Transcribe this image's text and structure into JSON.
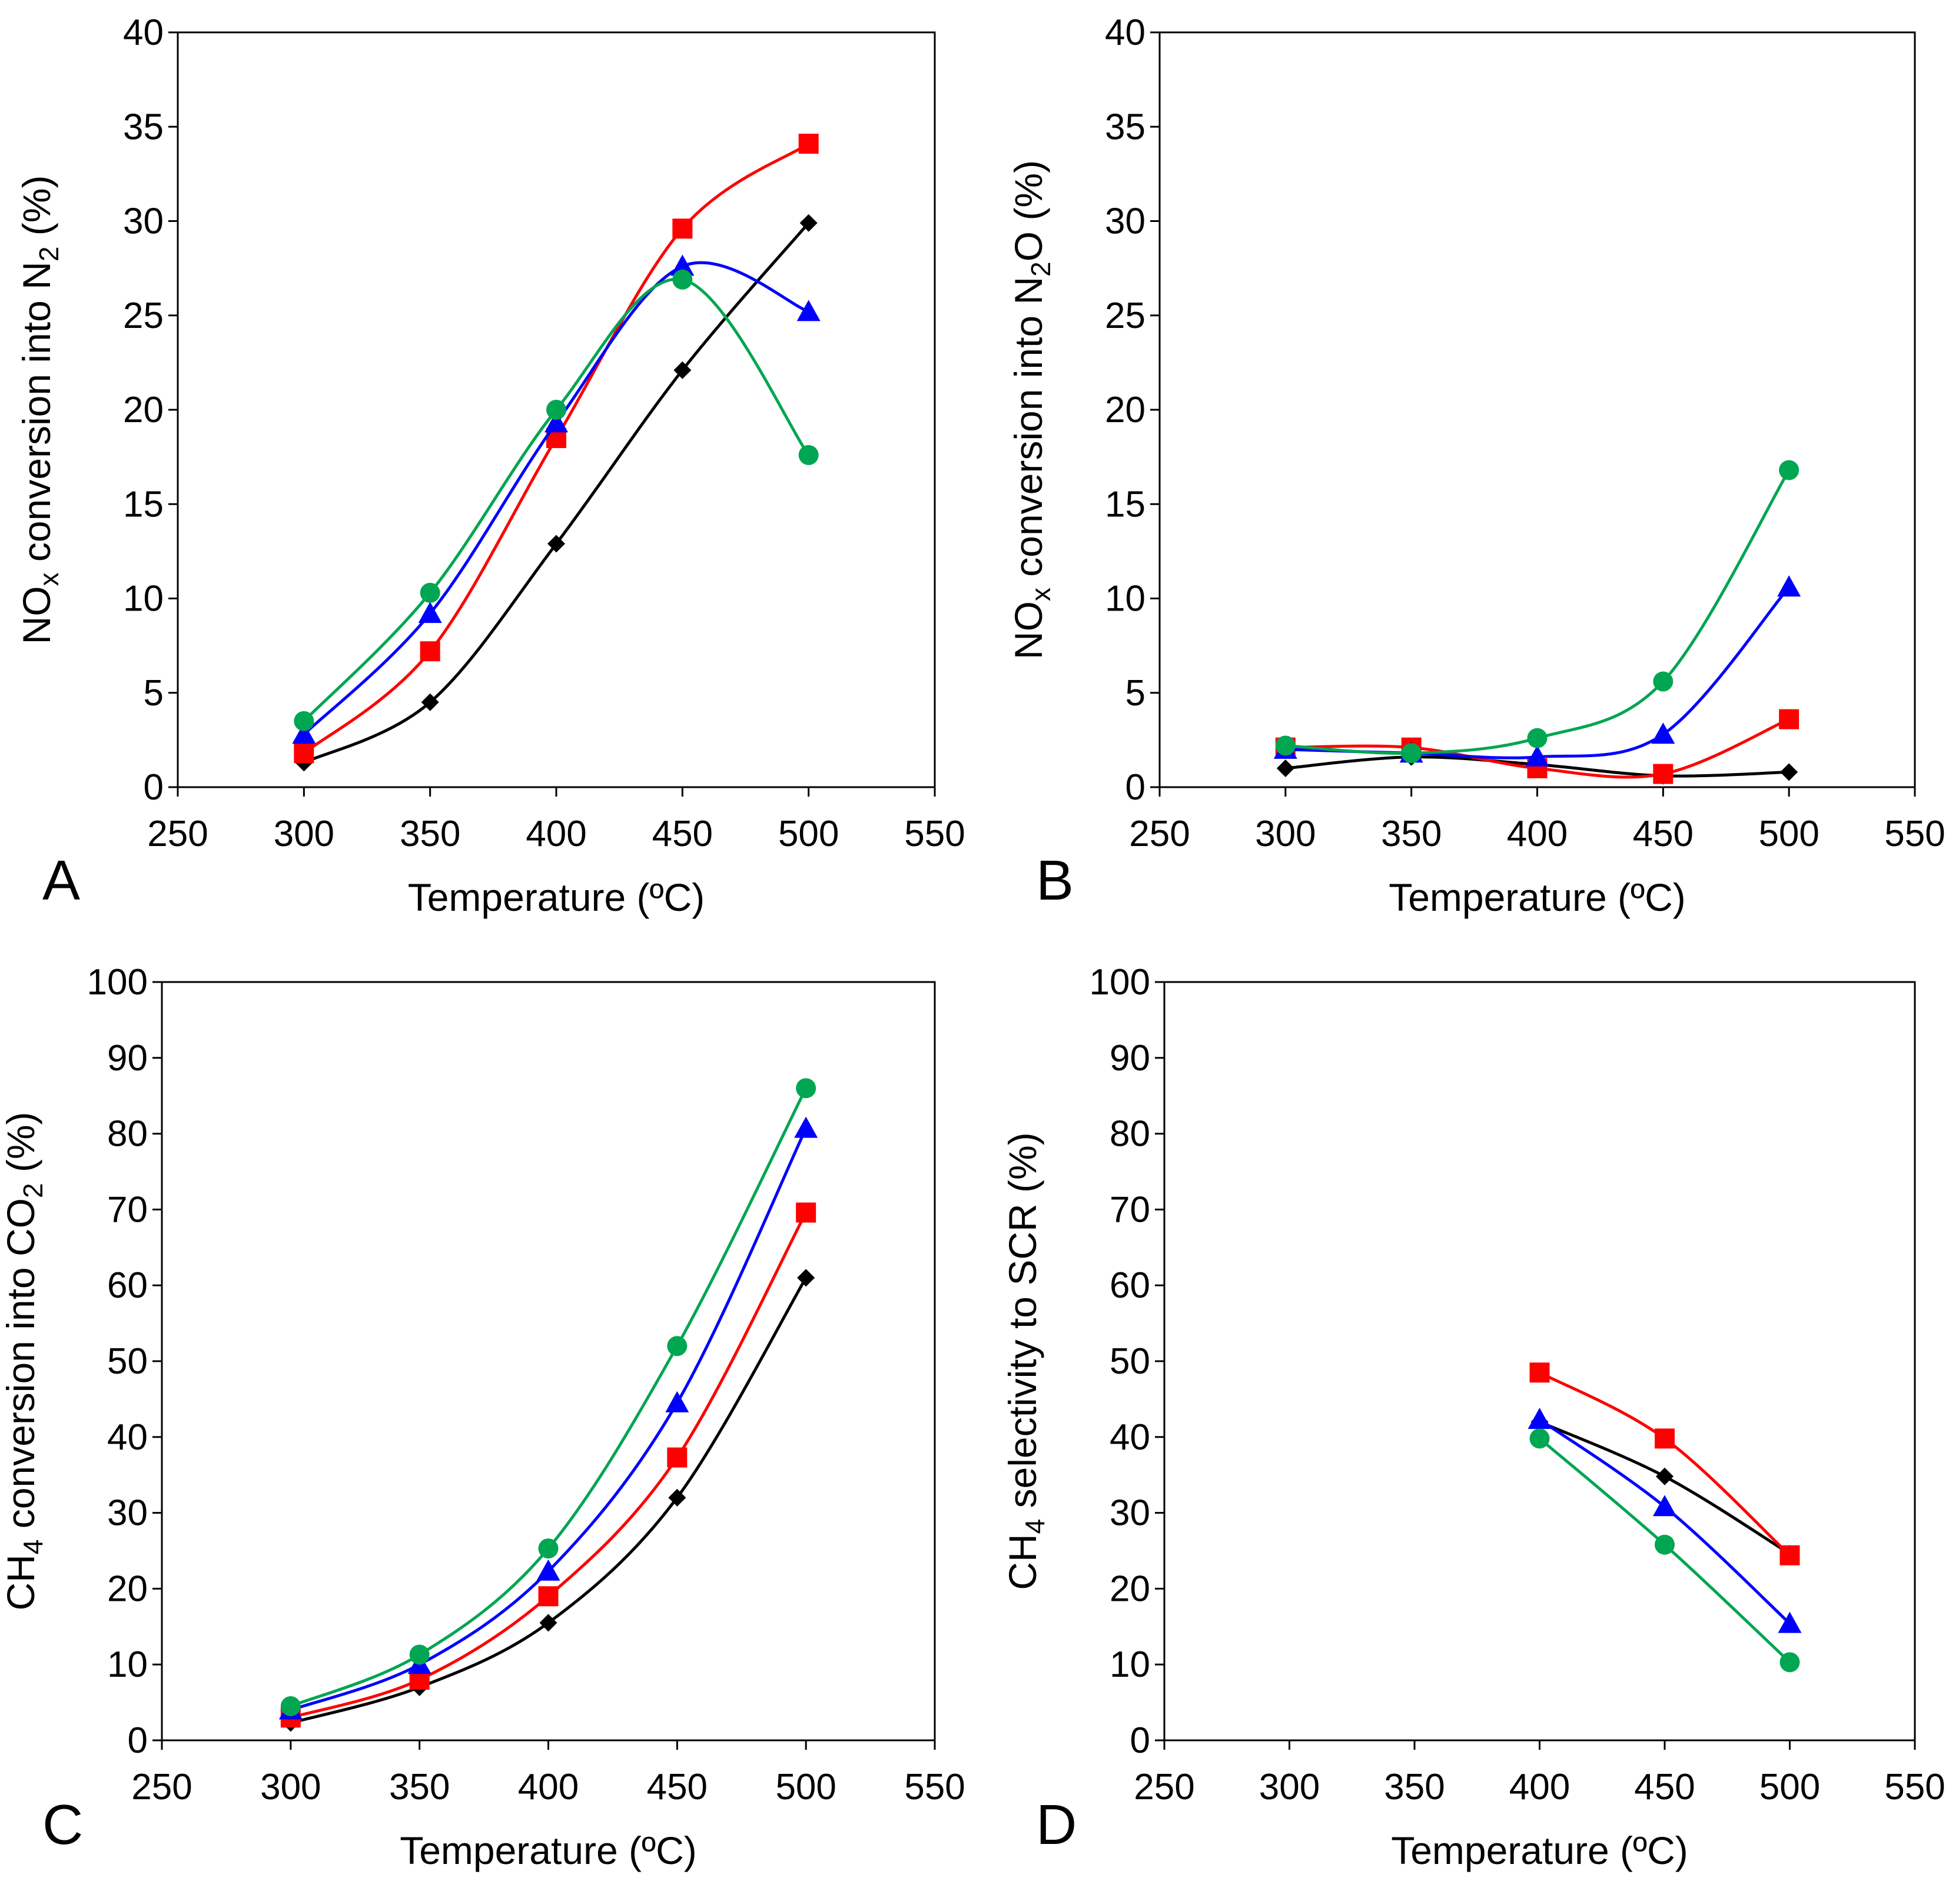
{
  "colors": {
    "series_1": "#000000",
    "series_2": "#ff0000",
    "series_3": "#0000ff",
    "series_4": "#00a651"
  },
  "chart_data": [
    {
      "panel": "A",
      "type": "line",
      "xlabel": "Temperature (ºC)",
      "ylabel": {
        "pre": "NO",
        "sub1": "x",
        "mid": " conversion into N",
        "sub2": "2",
        "post": " (%)"
      },
      "xlim": [
        250,
        550
      ],
      "ylim": [
        0,
        40
      ],
      "xticks": [
        250,
        300,
        350,
        400,
        450,
        500,
        550
      ],
      "yticks": [
        0,
        5,
        10,
        15,
        20,
        25,
        30,
        35,
        40
      ],
      "grid": false,
      "series": [
        {
          "marker": "diamond",
          "color": "#000000",
          "x": [
            300,
            350,
            400,
            450,
            500
          ],
          "y": [
            1.3,
            4.5,
            12.9,
            22.1,
            29.9
          ]
        },
        {
          "marker": "square",
          "color": "#ff0000",
          "x": [
            300,
            350,
            400,
            450,
            500
          ],
          "y": [
            1.8,
            7.2,
            18.5,
            29.6,
            34.1
          ]
        },
        {
          "marker": "triangle",
          "color": "#0000ff",
          "x": [
            300,
            350,
            400,
            450,
            500
          ],
          "y": [
            2.8,
            9.2,
            19.3,
            27.6,
            25.2
          ]
        },
        {
          "marker": "circle",
          "color": "#00a651",
          "x": [
            300,
            350,
            400,
            450,
            500
          ],
          "y": [
            3.5,
            10.3,
            20.0,
            26.9,
            17.6
          ]
        }
      ]
    },
    {
      "panel": "B",
      "type": "line",
      "xlabel": "Temperature (ºC)",
      "ylabel": {
        "pre": "NO",
        "sub1": "x",
        "mid": " conversion into N",
        "sub2": "2",
        "post": "O (%)"
      },
      "xlim": [
        250,
        550
      ],
      "ylim": [
        0,
        40
      ],
      "xticks": [
        250,
        300,
        350,
        400,
        450,
        500,
        550
      ],
      "yticks": [
        0,
        5,
        10,
        15,
        20,
        25,
        30,
        35,
        40
      ],
      "grid": false,
      "series": [
        {
          "marker": "diamond",
          "color": "#000000",
          "x": [
            300,
            350,
            400,
            450,
            500
          ],
          "y": [
            1.0,
            1.6,
            1.2,
            0.6,
            0.8
          ]
        },
        {
          "marker": "square",
          "color": "#ff0000",
          "x": [
            300,
            350,
            400,
            450,
            500
          ],
          "y": [
            2.1,
            2.1,
            1.0,
            0.7,
            3.6
          ]
        },
        {
          "marker": "triangle",
          "color": "#0000ff",
          "x": [
            300,
            350,
            400,
            450,
            500
          ],
          "y": [
            2.0,
            1.8,
            1.6,
            2.8,
            10.6
          ]
        },
        {
          "marker": "circle",
          "color": "#00a651",
          "x": [
            300,
            350,
            400,
            450,
            500
          ],
          "y": [
            2.2,
            1.8,
            2.6,
            5.6,
            16.8
          ]
        }
      ]
    },
    {
      "panel": "C",
      "type": "line",
      "xlabel": "Temperature (ºC)",
      "ylabel": {
        "pre": "CH",
        "sub1": "4",
        "mid": " conversion into CO",
        "sub2": "2",
        "post": " (%)"
      },
      "xlim": [
        250,
        550
      ],
      "ylim": [
        0,
        100
      ],
      "xticks": [
        250,
        300,
        350,
        400,
        450,
        500,
        550
      ],
      "yticks": [
        0,
        10,
        20,
        30,
        40,
        50,
        60,
        70,
        80,
        90,
        100
      ],
      "grid": false,
      "series": [
        {
          "marker": "diamond",
          "color": "#000000",
          "x": [
            300,
            350,
            400,
            450,
            500
          ],
          "y": [
            2.3,
            7.0,
            15.5,
            32.0,
            61.0
          ]
        },
        {
          "marker": "square",
          "color": "#ff0000",
          "x": [
            300,
            350,
            400,
            450,
            500
          ],
          "y": [
            3.0,
            8.0,
            19.0,
            37.3,
            69.6
          ]
        },
        {
          "marker": "triangle",
          "color": "#0000ff",
          "x": [
            300,
            350,
            400,
            450,
            500
          ],
          "y": [
            4.0,
            10.0,
            22.3,
            44.5,
            80.7
          ]
        },
        {
          "marker": "circle",
          "color": "#00a651",
          "x": [
            300,
            350,
            400,
            450,
            500
          ],
          "y": [
            4.5,
            11.3,
            25.3,
            52.0,
            86.0
          ]
        }
      ]
    },
    {
      "panel": "D",
      "type": "line",
      "xlabel": "Temperature (ºC)",
      "ylabel": {
        "pre": "CH",
        "sub1": "4",
        "mid": " selectivity to SCR (%)",
        "sub2": "",
        "post": ""
      },
      "xlim": [
        250,
        550
      ],
      "ylim": [
        0,
        100
      ],
      "xticks": [
        250,
        300,
        350,
        400,
        450,
        500,
        550
      ],
      "yticks": [
        0,
        10,
        20,
        30,
        40,
        50,
        60,
        70,
        80,
        90,
        100
      ],
      "grid": false,
      "series": [
        {
          "marker": "diamond",
          "color": "#000000",
          "x": [
            400,
            450,
            500
          ],
          "y": [
            42.0,
            34.8,
            24.6
          ]
        },
        {
          "marker": "square",
          "color": "#ff0000",
          "x": [
            400,
            450,
            500
          ],
          "y": [
            48.5,
            39.8,
            24.4
          ]
        },
        {
          "marker": "triangle",
          "color": "#0000ff",
          "x": [
            400,
            450,
            500
          ],
          "y": [
            42.3,
            30.8,
            15.4
          ]
        },
        {
          "marker": "circle",
          "color": "#00a651",
          "x": [
            400,
            450,
            500
          ],
          "y": [
            39.8,
            25.8,
            10.3
          ]
        }
      ]
    }
  ]
}
